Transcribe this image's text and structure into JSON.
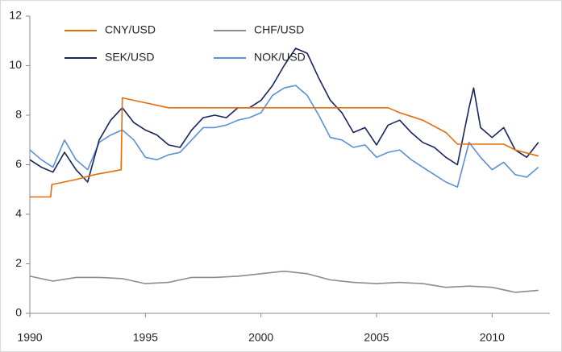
{
  "chart_data": {
    "type": "line",
    "xlim": [
      1990,
      2012.5
    ],
    "xticks": [
      1990,
      1995,
      2000,
      2005,
      2010
    ],
    "ylim": [
      0,
      12
    ],
    "yticks": [
      0,
      2,
      4,
      6,
      8,
      10,
      12
    ],
    "grid": false,
    "series": [
      {
        "name": "CNY/USD",
        "color": "#e46c0a",
        "x": [
          1990,
          1990.9,
          1990.95,
          1992,
          1992.8,
          1993.95,
          1994.0,
          1995,
          1996,
          2005.5,
          2006,
          2007,
          2008,
          2008.5,
          2010.5,
          2011,
          2012
        ],
        "values": [
          4.7,
          4.7,
          5.2,
          5.4,
          5.6,
          5.8,
          8.7,
          8.5,
          8.3,
          8.3,
          8.1,
          7.8,
          7.3,
          6.83,
          6.83,
          6.6,
          6.35
        ]
      },
      {
        "name": "CHF/USD",
        "color": "#8c8c8c",
        "x": [
          1990,
          1991,
          1992,
          1993,
          1994,
          1995,
          1996,
          1997,
          1998,
          1999,
          2000,
          2001,
          2002,
          2003,
          2004,
          2005,
          2006,
          2007,
          2008,
          2009,
          2010,
          2011,
          2012
        ],
        "values": [
          1.5,
          1.3,
          1.45,
          1.45,
          1.4,
          1.2,
          1.25,
          1.45,
          1.45,
          1.5,
          1.6,
          1.7,
          1.6,
          1.35,
          1.25,
          1.2,
          1.25,
          1.2,
          1.05,
          1.1,
          1.05,
          0.85,
          0.93
        ]
      },
      {
        "name": "SEK/USD",
        "color": "#17245e",
        "x": [
          1990,
          1990.5,
          1991,
          1991.5,
          1992,
          1992.5,
          1993,
          1993.5,
          1994,
          1994.5,
          1995,
          1995.5,
          1996,
          1996.5,
          1997,
          1997.5,
          1998,
          1998.5,
          1999,
          1999.5,
          2000,
          2000.5,
          2001,
          2001.5,
          2002,
          2002.5,
          2003,
          2003.5,
          2004,
          2004.5,
          2005,
          2005.5,
          2006,
          2006.5,
          2007,
          2007.5,
          2008,
          2008.5,
          2009,
          2009.2,
          2009.5,
          2010,
          2010.5,
          2011,
          2011.5,
          2012
        ],
        "values": [
          6.2,
          5.9,
          5.7,
          6.5,
          5.8,
          5.3,
          7.0,
          7.8,
          8.3,
          7.7,
          7.4,
          7.2,
          6.8,
          6.7,
          7.4,
          7.9,
          8.0,
          7.9,
          8.3,
          8.3,
          8.6,
          9.2,
          10.0,
          10.7,
          10.5,
          9.5,
          8.6,
          8.1,
          7.3,
          7.5,
          6.8,
          7.6,
          7.8,
          7.3,
          6.9,
          6.7,
          6.3,
          6.0,
          8.3,
          9.1,
          7.5,
          7.1,
          7.5,
          6.6,
          6.3,
          6.9
        ]
      },
      {
        "name": "NOK/USD",
        "color": "#5b8fd6",
        "x": [
          1990,
          1990.5,
          1991,
          1991.5,
          1992,
          1992.5,
          1993,
          1993.5,
          1994,
          1994.5,
          1995,
          1995.5,
          1996,
          1996.5,
          1997,
          1997.5,
          1998,
          1998.5,
          1999,
          1999.5,
          2000,
          2000.5,
          2001,
          2001.5,
          2002,
          2002.5,
          2003,
          2003.5,
          2004,
          2004.5,
          2005,
          2005.5,
          2006,
          2006.5,
          2007,
          2007.5,
          2008,
          2008.5,
          2009,
          2009.5,
          2010,
          2010.5,
          2011,
          2011.5,
          2012
        ],
        "values": [
          6.6,
          6.2,
          5.9,
          7.0,
          6.2,
          5.8,
          6.9,
          7.2,
          7.4,
          7.0,
          6.3,
          6.2,
          6.4,
          6.5,
          7.0,
          7.5,
          7.5,
          7.6,
          7.8,
          7.9,
          8.1,
          8.8,
          9.1,
          9.2,
          8.8,
          8.0,
          7.1,
          7.0,
          6.7,
          6.8,
          6.3,
          6.5,
          6.6,
          6.2,
          5.9,
          5.6,
          5.3,
          5.1,
          6.9,
          6.3,
          5.8,
          6.1,
          5.6,
          5.5,
          5.9
        ]
      }
    ]
  }
}
